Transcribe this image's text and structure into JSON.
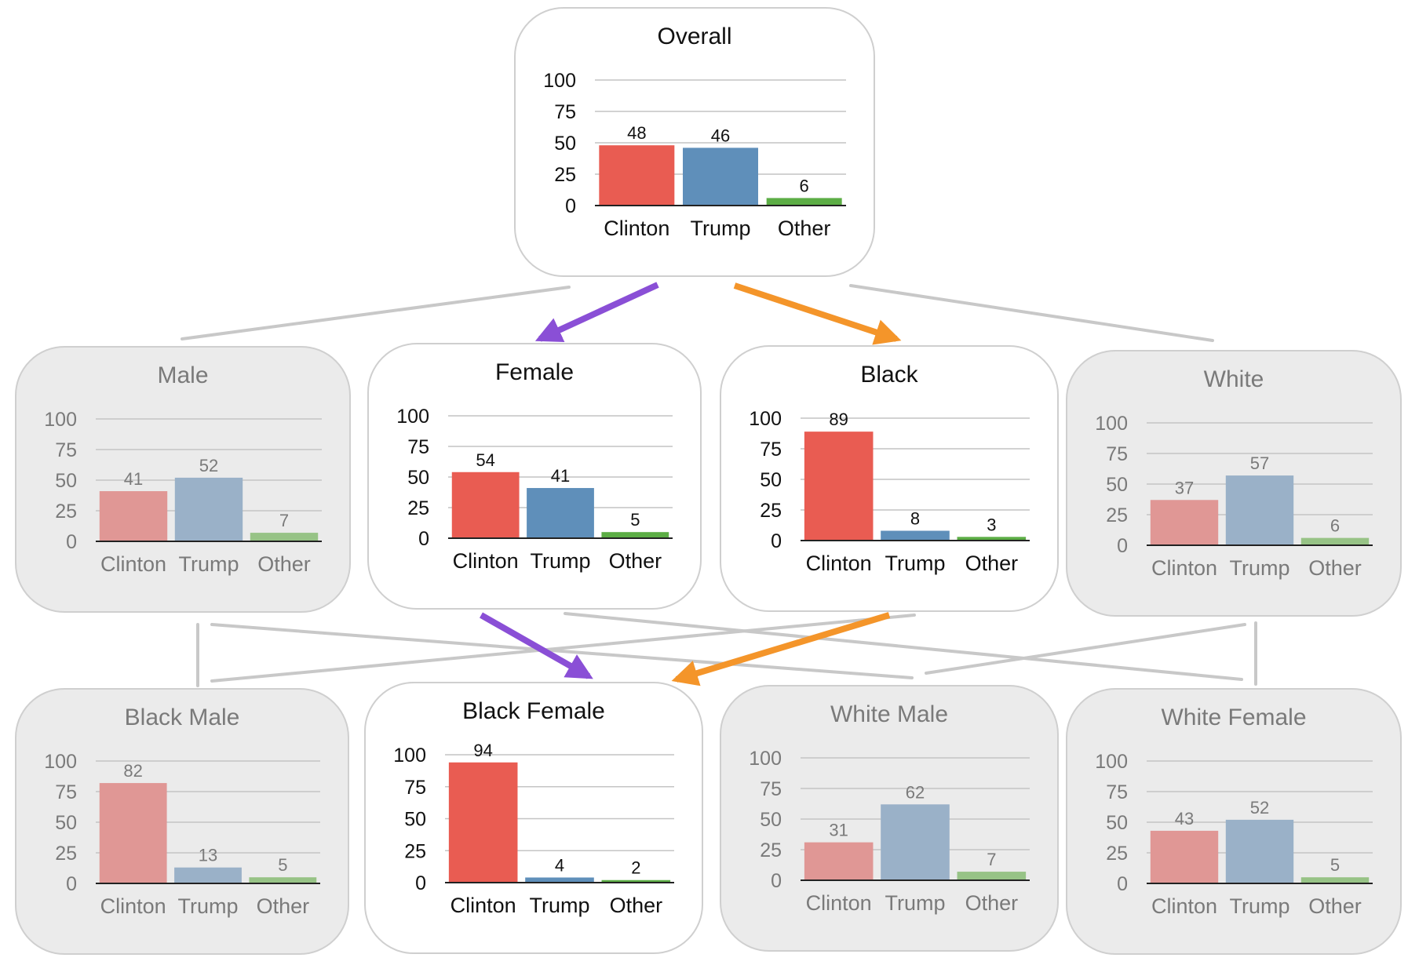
{
  "colors": {
    "clinton": "#e95c52",
    "trump": "#5f8fba",
    "other": "#5cad45",
    "clinton_muted": "#e09795",
    "trump_muted": "#9ab1c8",
    "other_muted": "#97c386",
    "path_a": "#8a4fd6",
    "path_b": "#f4952a",
    "connector": "#c8c8c8"
  },
  "chart_data": [
    {
      "type": "bar",
      "title": "Overall",
      "categories": [
        "Clinton",
        "Trump",
        "Other"
      ],
      "values": [
        48,
        46,
        6
      ],
      "yticks": [
        0,
        25,
        50,
        75,
        100
      ],
      "ylim": [
        0,
        100
      ],
      "grid": true,
      "highlighted": true
    },
    {
      "type": "bar",
      "title": "Male",
      "categories": [
        "Clinton",
        "Trump",
        "Other"
      ],
      "values": [
        41,
        52,
        7
      ],
      "yticks": [
        0,
        25,
        50,
        75,
        100
      ],
      "ylim": [
        0,
        100
      ],
      "grid": true,
      "highlighted": false
    },
    {
      "type": "bar",
      "title": "Female",
      "categories": [
        "Clinton",
        "Trump",
        "Other"
      ],
      "values": [
        54,
        41,
        5
      ],
      "yticks": [
        0,
        25,
        50,
        75,
        100
      ],
      "ylim": [
        0,
        100
      ],
      "grid": true,
      "highlighted": true
    },
    {
      "type": "bar",
      "title": "Black",
      "categories": [
        "Clinton",
        "Trump",
        "Other"
      ],
      "values": [
        89,
        8,
        3
      ],
      "yticks": [
        0,
        25,
        50,
        75,
        100
      ],
      "ylim": [
        0,
        100
      ],
      "grid": true,
      "highlighted": true
    },
    {
      "type": "bar",
      "title": "White",
      "categories": [
        "Clinton",
        "Trump",
        "Other"
      ],
      "values": [
        37,
        57,
        6
      ],
      "yticks": [
        0,
        25,
        50,
        75,
        100
      ],
      "ylim": [
        0,
        100
      ],
      "grid": true,
      "highlighted": false
    },
    {
      "type": "bar",
      "title": "Black Male",
      "categories": [
        "Clinton",
        "Trump",
        "Other"
      ],
      "values": [
        82,
        13,
        5
      ],
      "yticks": [
        0,
        25,
        50,
        75,
        100
      ],
      "ylim": [
        0,
        100
      ],
      "grid": true,
      "highlighted": false
    },
    {
      "type": "bar",
      "title": "Black Female",
      "categories": [
        "Clinton",
        "Trump",
        "Other"
      ],
      "values": [
        94,
        4,
        2
      ],
      "yticks": [
        0,
        25,
        50,
        75,
        100
      ],
      "ylim": [
        0,
        100
      ],
      "grid": true,
      "highlighted": true
    },
    {
      "type": "bar",
      "title": "White Male",
      "categories": [
        "Clinton",
        "Trump",
        "Other"
      ],
      "values": [
        31,
        62,
        7
      ],
      "yticks": [
        0,
        25,
        50,
        75,
        100
      ],
      "ylim": [
        0,
        100
      ],
      "grid": true,
      "highlighted": false
    },
    {
      "type": "bar",
      "title": "White Female",
      "categories": [
        "Clinton",
        "Trump",
        "Other"
      ],
      "values": [
        43,
        52,
        5
      ],
      "yticks": [
        0,
        25,
        50,
        75,
        100
      ],
      "ylim": [
        0,
        100
      ],
      "grid": true,
      "highlighted": false
    }
  ]
}
